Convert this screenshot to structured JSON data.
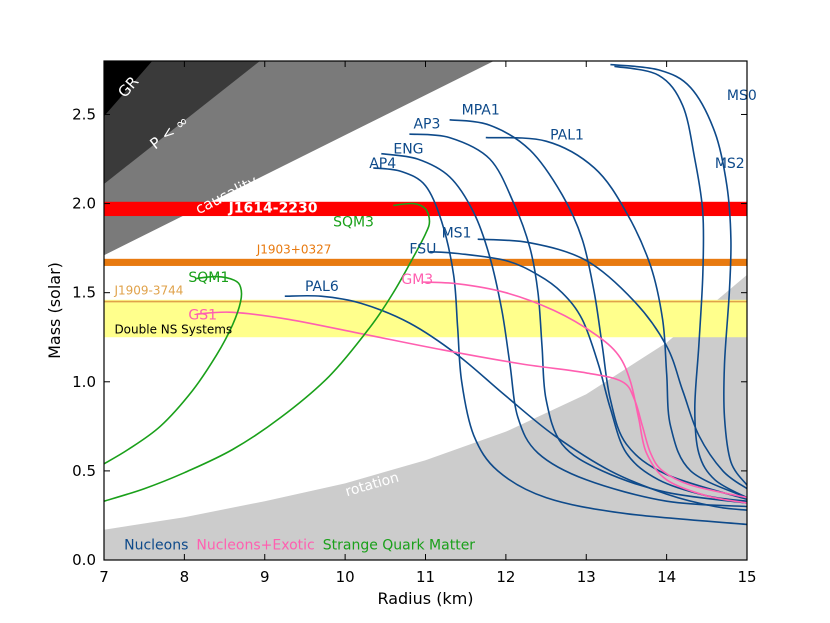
{
  "chart_data": {
    "type": "line",
    "xlabel": "Radius (km)",
    "ylabel": "Mass (solar)",
    "xlim": [
      7,
      15
    ],
    "ylim": [
      0,
      2.8
    ],
    "xticks": [
      7,
      8,
      9,
      10,
      11,
      12,
      13,
      14,
      15
    ],
    "yticks": [
      0.0,
      0.5,
      1.0,
      1.5,
      2.0,
      2.5
    ],
    "ytick_labels": [
      "0.0",
      "0.5",
      "1.0",
      "1.5",
      "2.0",
      "2.5"
    ],
    "grid": false,
    "colors": {
      "nucleons": "#0e4a8a",
      "exotic": "#ff5fb0",
      "strange": "#1aa01a",
      "j1614": "#ff0000",
      "j1903": "#e87a10",
      "j1909": "#e0a24a",
      "double_ns": "#ffff8c",
      "gr": "#000000",
      "p_inf": "#3a3a3a",
      "causality": "#7a7a7a",
      "rotation": "#cccccc"
    },
    "regions": [
      {
        "name": "GR",
        "label": "GR",
        "boundary_points": [
          [
            7,
            2.49
          ],
          [
            7.6,
            2.8
          ]
        ]
      },
      {
        "name": "p_inf",
        "label": "P < ∞",
        "boundary_points": [
          [
            7,
            2.11
          ],
          [
            8.94,
            2.8
          ]
        ]
      },
      {
        "name": "causality",
        "label": "causality",
        "boundary_points": [
          [
            7,
            1.71
          ],
          [
            11.85,
            2.8
          ]
        ]
      },
      {
        "name": "rotation",
        "label": "rotation",
        "boundary_points": [
          [
            7,
            0.17
          ],
          [
            8,
            0.24
          ],
          [
            9,
            0.33
          ],
          [
            10,
            0.43
          ],
          [
            11,
            0.56
          ],
          [
            12,
            0.72
          ],
          [
            13,
            0.93
          ],
          [
            14,
            1.22
          ],
          [
            15,
            1.6
          ]
        ]
      }
    ],
    "bands": [
      {
        "name": "J1614-2230",
        "label": "J1614-2230",
        "y_min": 1.93,
        "y_max": 2.01
      },
      {
        "name": "J1903+0327",
        "label": "J1903+0327",
        "y_min": 1.65,
        "y_max": 1.69
      },
      {
        "name": "J1909-3744",
        "label": "J1909-3744",
        "y": 1.45
      },
      {
        "name": "double_ns",
        "label": "Double NS Systems",
        "y_min": 1.25,
        "y_max": 1.46
      }
    ],
    "legend": [
      {
        "label": "Nucleons",
        "color_key": "nucleons"
      },
      {
        "label": "Nucleons+Exotic",
        "color_key": "exotic"
      },
      {
        "label": "Strange Quark Matter",
        "color_key": "strange"
      }
    ],
    "series": [
      {
        "name": "AP4",
        "group": "nucleons",
        "label_at": [
          10.3,
          2.2
        ],
        "points": [
          [
            10.35,
            2.2
          ],
          [
            10.7,
            2.18
          ],
          [
            11.0,
            2.1
          ],
          [
            11.2,
            1.9
          ],
          [
            11.35,
            1.6
          ],
          [
            11.4,
            1.3
          ],
          [
            11.45,
            1.0
          ],
          [
            11.6,
            0.7
          ],
          [
            11.9,
            0.5
          ],
          [
            12.5,
            0.35
          ],
          [
            13.5,
            0.26
          ],
          [
            15,
            0.2
          ]
        ]
      },
      {
        "name": "ENG",
        "group": "nucleons",
        "label_at": [
          10.6,
          2.28
        ],
        "points": [
          [
            10.45,
            2.28
          ],
          [
            10.9,
            2.25
          ],
          [
            11.3,
            2.15
          ],
          [
            11.6,
            1.95
          ],
          [
            11.8,
            1.7
          ],
          [
            11.95,
            1.4
          ],
          [
            12.05,
            1.1
          ],
          [
            12.15,
            0.8
          ],
          [
            12.4,
            0.6
          ],
          [
            13,
            0.45
          ],
          [
            14,
            0.33
          ],
          [
            15,
            0.3
          ]
        ]
      },
      {
        "name": "AP3",
        "group": "nucleons",
        "label_at": [
          10.85,
          2.42
        ],
        "points": [
          [
            10.8,
            2.39
          ],
          [
            11.3,
            2.37
          ],
          [
            11.8,
            2.25
          ],
          [
            12.1,
            2.0
          ],
          [
            12.3,
            1.75
          ],
          [
            12.4,
            1.5
          ],
          [
            12.45,
            1.2
          ],
          [
            12.5,
            0.9
          ],
          [
            12.7,
            0.65
          ],
          [
            13.2,
            0.5
          ],
          [
            14,
            0.38
          ],
          [
            15,
            0.32
          ]
        ]
      },
      {
        "name": "MPA1",
        "group": "nucleons",
        "label_at": [
          11.45,
          2.5
        ],
        "points": [
          [
            11.3,
            2.47
          ],
          [
            11.8,
            2.44
          ],
          [
            12.3,
            2.3
          ],
          [
            12.7,
            2.05
          ],
          [
            12.95,
            1.8
          ],
          [
            13.1,
            1.5
          ],
          [
            13.2,
            1.2
          ],
          [
            13.3,
            0.9
          ],
          [
            13.5,
            0.65
          ],
          [
            14,
            0.48
          ],
          [
            15,
            0.34
          ]
        ]
      },
      {
        "name": "PAL1",
        "group": "nucleons",
        "label_at": [
          12.55,
          2.36
        ],
        "points": [
          [
            11.75,
            2.37
          ],
          [
            12.5,
            2.35
          ],
          [
            13.1,
            2.2
          ],
          [
            13.5,
            1.95
          ],
          [
            13.8,
            1.65
          ],
          [
            13.95,
            1.35
          ],
          [
            14.0,
            1.05
          ],
          [
            14.05,
            0.75
          ],
          [
            14.3,
            0.5
          ],
          [
            15,
            0.35
          ]
        ]
      },
      {
        "name": "MS0",
        "group": "nucleons",
        "label_at": [
          14.75,
          2.58
        ],
        "points": [
          [
            13.3,
            2.78
          ],
          [
            13.9,
            2.75
          ],
          [
            14.3,
            2.65
          ],
          [
            14.6,
            2.4
          ],
          [
            14.75,
            2.1
          ],
          [
            14.8,
            1.8
          ],
          [
            14.78,
            1.5
          ],
          [
            14.72,
            1.1
          ],
          [
            14.72,
            0.8
          ],
          [
            14.8,
            0.55
          ],
          [
            15,
            0.42
          ]
        ]
      },
      {
        "name": "MS2",
        "group": "nucleons",
        "label_at": [
          14.6,
          2.2
        ],
        "points": [
          [
            13.35,
            2.77
          ],
          [
            13.9,
            2.72
          ],
          [
            14.2,
            2.55
          ],
          [
            14.35,
            2.25
          ],
          [
            14.45,
            1.95
          ],
          [
            14.45,
            1.6
          ],
          [
            14.4,
            1.2
          ],
          [
            14.35,
            0.85
          ],
          [
            14.4,
            0.6
          ],
          [
            14.6,
            0.45
          ],
          [
            15,
            0.35
          ]
        ]
      },
      {
        "name": "MS1",
        "group": "nucleons",
        "label_at": [
          11.2,
          1.81
        ],
        "points": [
          [
            11.65,
            1.8
          ],
          [
            12.3,
            1.78
          ],
          [
            13.0,
            1.68
          ],
          [
            13.6,
            1.45
          ],
          [
            14.0,
            1.2
          ],
          [
            14.2,
            0.95
          ],
          [
            14.4,
            0.7
          ],
          [
            14.7,
            0.5
          ],
          [
            15,
            0.4
          ]
        ]
      },
      {
        "name": "FSU",
        "group": "nucleons",
        "label_at": [
          10.8,
          1.72
        ],
        "points": [
          [
            11.05,
            1.73
          ],
          [
            11.4,
            1.72
          ],
          [
            12.0,
            1.68
          ],
          [
            12.4,
            1.6
          ],
          [
            12.7,
            1.5
          ],
          [
            12.95,
            1.35
          ],
          [
            13.15,
            1.1
          ],
          [
            13.3,
            0.85
          ],
          [
            13.5,
            0.6
          ],
          [
            13.9,
            0.45
          ],
          [
            14.5,
            0.36
          ],
          [
            15,
            0.33
          ]
        ]
      },
      {
        "name": "PAL6",
        "group": "nucleons",
        "label_at": [
          9.5,
          1.51
        ],
        "points": [
          [
            9.25,
            1.48
          ],
          [
            9.7,
            1.48
          ],
          [
            10.2,
            1.44
          ],
          [
            10.8,
            1.33
          ],
          [
            11.4,
            1.15
          ],
          [
            12.0,
            0.92
          ],
          [
            12.6,
            0.7
          ],
          [
            13.3,
            0.5
          ],
          [
            14.0,
            0.37
          ],
          [
            14.6,
            0.3
          ],
          [
            15,
            0.28
          ]
        ]
      },
      {
        "name": "GM3",
        "group": "exotic",
        "label_at": [
          10.7,
          1.55
        ],
        "points": [
          [
            10.95,
            1.56
          ],
          [
            11.4,
            1.55
          ],
          [
            12.0,
            1.5
          ],
          [
            12.6,
            1.4
          ],
          [
            13.1,
            1.27
          ],
          [
            13.4,
            1.15
          ],
          [
            13.55,
            1.0
          ],
          [
            13.65,
            0.8
          ],
          [
            13.75,
            0.6
          ],
          [
            14.0,
            0.45
          ],
          [
            14.5,
            0.36
          ],
          [
            15,
            0.32
          ]
        ]
      },
      {
        "name": "GS1",
        "group": "exotic",
        "label_at": [
          8.05,
          1.35
        ],
        "points": [
          [
            8.15,
            1.38
          ],
          [
            8.6,
            1.39
          ],
          [
            9.3,
            1.35
          ],
          [
            10.2,
            1.27
          ],
          [
            11.2,
            1.18
          ],
          [
            12.2,
            1.1
          ],
          [
            13.0,
            1.05
          ],
          [
            13.45,
            1.0
          ],
          [
            13.6,
            0.9
          ],
          [
            13.7,
            0.75
          ],
          [
            13.8,
            0.6
          ],
          [
            13.95,
            0.5
          ],
          [
            14.3,
            0.42
          ],
          [
            15,
            0.35
          ]
        ]
      },
      {
        "name": "SQM1",
        "group": "strange",
        "label_at": [
          8.05,
          1.56
        ],
        "points": [
          [
            7.0,
            0.54
          ],
          [
            7.3,
            0.62
          ],
          [
            7.7,
            0.75
          ],
          [
            8.1,
            0.95
          ],
          [
            8.4,
            1.15
          ],
          [
            8.6,
            1.32
          ],
          [
            8.7,
            1.45
          ],
          [
            8.7,
            1.53
          ],
          [
            8.62,
            1.57
          ],
          [
            8.4,
            1.59
          ],
          [
            8.15,
            1.58
          ]
        ]
      },
      {
        "name": "SQM3",
        "group": "strange",
        "label_at": [
          9.85,
          1.87
        ],
        "points": [
          [
            7.0,
            0.33
          ],
          [
            7.5,
            0.4
          ],
          [
            8.0,
            0.49
          ],
          [
            8.6,
            0.62
          ],
          [
            9.2,
            0.8
          ],
          [
            9.8,
            1.03
          ],
          [
            10.3,
            1.3
          ],
          [
            10.6,
            1.5
          ],
          [
            10.85,
            1.7
          ],
          [
            11.0,
            1.83
          ],
          [
            11.05,
            1.9
          ],
          [
            11.0,
            1.97
          ],
          [
            10.85,
            2.0
          ],
          [
            10.6,
            1.99
          ]
        ]
      }
    ]
  }
}
